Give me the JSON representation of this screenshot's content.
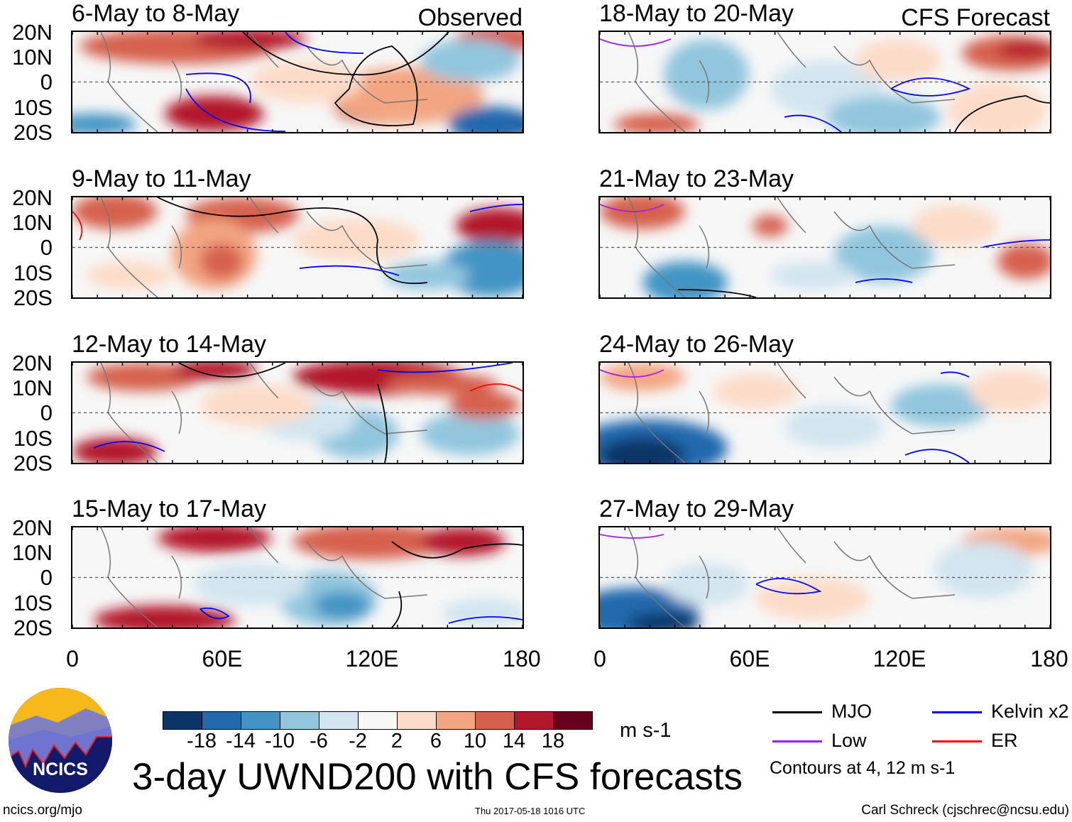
{
  "chart_data": {
    "type": "heatmap",
    "title": "3-day UWND200 with CFS forecasts",
    "variable": "UWND200",
    "units": "m s-1",
    "column_labels": [
      "Observed",
      "CFS Forecast"
    ],
    "x_ticks": [
      "0",
      "60E",
      "120E",
      "180"
    ],
    "y_ticks": [
      "20N",
      "10N",
      "0",
      "10S",
      "20S"
    ],
    "xlim": [
      0,
      180
    ],
    "ylim": [
      -20,
      20
    ],
    "panels": [
      {
        "title": "6-May to 8-May",
        "column": "Observed"
      },
      {
        "title": "9-May to 11-May",
        "column": "Observed"
      },
      {
        "title": "12-May to 14-May",
        "column": "Observed"
      },
      {
        "title": "15-May to 17-May",
        "column": "Observed"
      },
      {
        "title": "18-May to 20-May",
        "column": "CFS Forecast"
      },
      {
        "title": "21-May to 23-May",
        "column": "CFS Forecast"
      },
      {
        "title": "24-May to 26-May",
        "column": "CFS Forecast"
      },
      {
        "title": "27-May to 29-May",
        "column": "CFS Forecast"
      }
    ],
    "colorbar": {
      "levels": [
        "-18",
        "-14",
        "-10",
        "-6",
        "-2",
        "2",
        "6",
        "10",
        "14",
        "18"
      ],
      "colors": [
        "#0b3467",
        "#2369ad",
        "#4394c4",
        "#92c6de",
        "#d2e5f0",
        "#f7f7f7",
        "#fcdbc8",
        "#f3a582",
        "#d6604d",
        "#b2182b",
        "#67001f"
      ]
    },
    "legend": [
      {
        "label": "MJO",
        "color": "#000000"
      },
      {
        "label": "Kelvin x2",
        "color": "#0000ff"
      },
      {
        "label": "Low",
        "color": "#a020f0"
      },
      {
        "label": "ER",
        "color": "#ff0000"
      }
    ],
    "contour_note": "Contours at 4, 12 m s-1"
  },
  "footer": {
    "left": "ncics.org/mjo",
    "center": "Thu 2017-05-18 1016 UTC",
    "right": "Carl Schreck (cjschrec@ncsu.edu)",
    "logo_text": "NCICS"
  }
}
